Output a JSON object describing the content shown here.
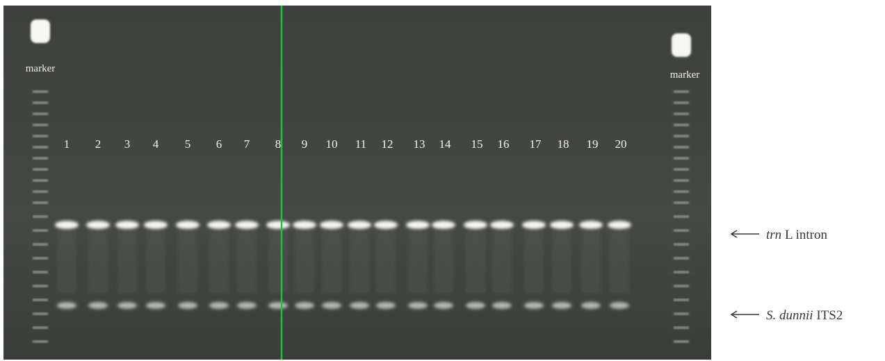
{
  "gel": {
    "marker_labels": [
      "marker",
      "marker"
    ],
    "lanes": [
      "1",
      "2",
      "3",
      "4",
      "5",
      "6",
      "7",
      "8",
      "9",
      "10",
      "11",
      "12",
      "13",
      "14",
      "15",
      "16",
      "17",
      "18",
      "19",
      "20"
    ]
  },
  "annotations": [
    {
      "italic": "trn",
      "text": "L intron"
    },
    {
      "italic": "S. dunnii",
      "text": "ITS2"
    }
  ]
}
